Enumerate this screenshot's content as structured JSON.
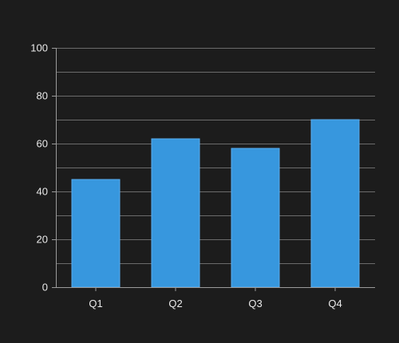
{
  "chart_data": {
    "type": "bar",
    "title": "",
    "xlabel": "",
    "ylabel": "",
    "categories": [
      "Q1",
      "Q2",
      "Q3",
      "Q4"
    ],
    "values": [
      45,
      62,
      58,
      70
    ],
    "ylim": [
      0,
      100
    ],
    "y_ticks": [
      0,
      20,
      40,
      60,
      80,
      100
    ],
    "y_tick_labels": [
      "0",
      "20",
      "40",
      "60",
      "80",
      "100"
    ],
    "gridlines_every": 10,
    "grid": true,
    "legend": false,
    "colors": {
      "background": "#1c1c1c",
      "bar": "#3797de",
      "grid": "#6b6b6b",
      "text": "#eaeaea"
    }
  }
}
